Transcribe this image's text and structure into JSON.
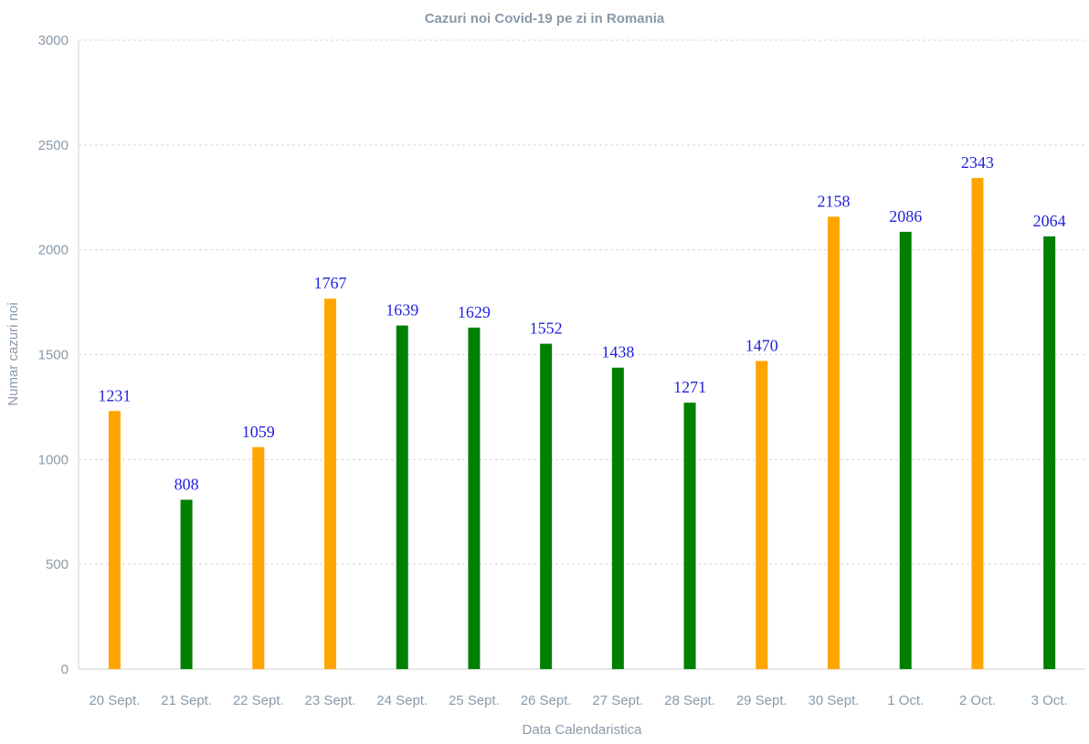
{
  "chart_data": {
    "type": "bar",
    "title": "Cazuri noi Covid-19 pe zi in Romania",
    "xlabel": "Data Calendaristica",
    "ylabel": "Numar cazuri noi",
    "ylim": [
      0,
      3000
    ],
    "yticks": [
      0,
      500,
      1000,
      1500,
      2000,
      2500,
      3000
    ],
    "grid": true,
    "categories": [
      "20 Sept.",
      "21 Sept.",
      "22 Sept.",
      "23 Sept.",
      "24 Sept.",
      "25 Sept.",
      "26 Sept.",
      "27 Sept.",
      "28 Sept.",
      "29 Sept.",
      "30 Sept.",
      "1 Oct.",
      "2 Oct.",
      "3 Oct."
    ],
    "values": [
      1231,
      808,
      1059,
      1767,
      1639,
      1629,
      1552,
      1438,
      1271,
      1470,
      2158,
      2086,
      2343,
      2064
    ],
    "bar_colors": [
      "#FFA500",
      "#008000",
      "#FFA500",
      "#FFA500",
      "#008000",
      "#008000",
      "#008000",
      "#008000",
      "#008000",
      "#FFA500",
      "#FFA500",
      "#008000",
      "#FFA500",
      "#008000"
    ],
    "data_label_color": "#2222DD",
    "text_color": "#8a9aa9"
  }
}
